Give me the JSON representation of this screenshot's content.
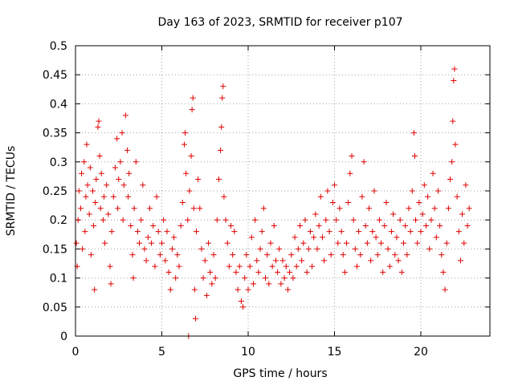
{
  "chart_data": {
    "type": "scatter",
    "title": "Day 163 of 2023, SRMTID for receiver p107",
    "xlabel": "GPS time / hours",
    "ylabel": "SRMTID / TECUs",
    "xlim": [
      0,
      24
    ],
    "ylim": [
      0,
      0.5
    ],
    "xticks": [
      0,
      5,
      10,
      15,
      20
    ],
    "xtick_labels": [
      "0",
      "5",
      "10",
      "15",
      "20"
    ],
    "yticks": [
      0,
      0.05,
      0.1,
      0.15,
      0.2,
      0.25,
      0.3,
      0.35,
      0.4,
      0.45,
      0.5
    ],
    "ytick_labels": [
      "0",
      "0.05",
      "0.1",
      "0.15",
      "0.2",
      "0.25",
      "0.3",
      "0.35",
      "0.4",
      "0.45",
      "0.5"
    ],
    "grid": true,
    "marker": "+",
    "color": "#e00000",
    "series": [
      {
        "name": "SRMTID",
        "points": [
          [
            0.05,
            0.16
          ],
          [
            0.1,
            0.12
          ],
          [
            0.15,
            0.2
          ],
          [
            0.2,
            0.25
          ],
          [
            0.3,
            0.22
          ],
          [
            0.35,
            0.28
          ],
          [
            0.4,
            0.15
          ],
          [
            0.5,
            0.3
          ],
          [
            0.55,
            0.18
          ],
          [
            0.6,
            0.24
          ],
          [
            0.65,
            0.33
          ],
          [
            0.7,
            0.26
          ],
          [
            0.8,
            0.21
          ],
          [
            0.85,
            0.29
          ],
          [
            0.9,
            0.14
          ],
          [
            1.0,
            0.25
          ],
          [
            1.05,
            0.19
          ],
          [
            1.1,
            0.08
          ],
          [
            1.15,
            0.23
          ],
          [
            1.2,
            0.27
          ],
          [
            1.3,
            0.36
          ],
          [
            1.35,
            0.37
          ],
          [
            1.4,
            0.31
          ],
          [
            1.45,
            0.22
          ],
          [
            1.5,
            0.28
          ],
          [
            1.6,
            0.2
          ],
          [
            1.65,
            0.24
          ],
          [
            1.7,
            0.16
          ],
          [
            1.8,
            0.26
          ],
          [
            1.9,
            0.21
          ],
          [
            2.0,
            0.12
          ],
          [
            2.05,
            0.09
          ],
          [
            2.1,
            0.18
          ],
          [
            2.2,
            0.24
          ],
          [
            2.3,
            0.29
          ],
          [
            2.4,
            0.34
          ],
          [
            2.45,
            0.22
          ],
          [
            2.5,
            0.27
          ],
          [
            2.6,
            0.3
          ],
          [
            2.7,
            0.35
          ],
          [
            2.75,
            0.2
          ],
          [
            2.8,
            0.26
          ],
          [
            2.9,
            0.38
          ],
          [
            3.0,
            0.32
          ],
          [
            3.05,
            0.24
          ],
          [
            3.1,
            0.28
          ],
          [
            3.2,
            0.19
          ],
          [
            3.3,
            0.14
          ],
          [
            3.35,
            0.1
          ],
          [
            3.4,
            0.22
          ],
          [
            3.5,
            0.3
          ],
          [
            3.6,
            0.18
          ],
          [
            3.7,
            0.16
          ],
          [
            3.8,
            0.2
          ],
          [
            3.9,
            0.26
          ],
          [
            4.0,
            0.15
          ],
          [
            4.1,
            0.13
          ],
          [
            4.2,
            0.17
          ],
          [
            4.3,
            0.22
          ],
          [
            4.4,
            0.16
          ],
          [
            4.5,
            0.19
          ],
          [
            4.6,
            0.12
          ],
          [
            4.7,
            0.24
          ],
          [
            4.8,
            0.18
          ],
          [
            4.9,
            0.14
          ],
          [
            5.0,
            0.16
          ],
          [
            5.1,
            0.2
          ],
          [
            5.2,
            0.13
          ],
          [
            5.3,
            0.18
          ],
          [
            5.4,
            0.11
          ],
          [
            5.5,
            0.08
          ],
          [
            5.6,
            0.15
          ],
          [
            5.7,
            0.17
          ],
          [
            5.8,
            0.1
          ],
          [
            5.9,
            0.14
          ],
          [
            6.0,
            0.12
          ],
          [
            6.1,
            0.19
          ],
          [
            6.2,
            0.23
          ],
          [
            6.3,
            0.33
          ],
          [
            6.35,
            0.35
          ],
          [
            6.4,
            0.28
          ],
          [
            6.5,
            0.2
          ],
          [
            6.55,
            0.0
          ],
          [
            6.6,
            0.25
          ],
          [
            6.7,
            0.31
          ],
          [
            6.75,
            0.39
          ],
          [
            6.8,
            0.41
          ],
          [
            6.85,
            0.22
          ],
          [
            6.9,
            0.08
          ],
          [
            6.95,
            0.03
          ],
          [
            7.0,
            0.18
          ],
          [
            7.1,
            0.27
          ],
          [
            7.2,
            0.22
          ],
          [
            7.3,
            0.15
          ],
          [
            7.4,
            0.1
          ],
          [
            7.5,
            0.13
          ],
          [
            7.6,
            0.07
          ],
          [
            7.7,
            0.16
          ],
          [
            7.8,
            0.11
          ],
          [
            7.9,
            0.09
          ],
          [
            8.0,
            0.14
          ],
          [
            8.1,
            0.1
          ],
          [
            8.2,
            0.2
          ],
          [
            8.3,
            0.27
          ],
          [
            8.4,
            0.32
          ],
          [
            8.45,
            0.36
          ],
          [
            8.5,
            0.41
          ],
          [
            8.55,
            0.43
          ],
          [
            8.6,
            0.24
          ],
          [
            8.7,
            0.2
          ],
          [
            8.8,
            0.16
          ],
          [
            8.9,
            0.12
          ],
          [
            9.0,
            0.19
          ],
          [
            9.1,
            0.14
          ],
          [
            9.2,
            0.18
          ],
          [
            9.3,
            0.11
          ],
          [
            9.4,
            0.08
          ],
          [
            9.5,
            0.12
          ],
          [
            9.6,
            0.06
          ],
          [
            9.7,
            0.05
          ],
          [
            9.8,
            0.1
          ],
          [
            9.9,
            0.14
          ],
          [
            10.0,
            0.08
          ],
          [
            10.1,
            0.12
          ],
          [
            10.2,
            0.17
          ],
          [
            10.3,
            0.09
          ],
          [
            10.4,
            0.2
          ],
          [
            10.5,
            0.13
          ],
          [
            10.6,
            0.11
          ],
          [
            10.7,
            0.15
          ],
          [
            10.8,
            0.18
          ],
          [
            10.9,
            0.22
          ],
          [
            11.0,
            0.1
          ],
          [
            11.1,
            0.14
          ],
          [
            11.2,
            0.09
          ],
          [
            11.3,
            0.16
          ],
          [
            11.4,
            0.12
          ],
          [
            11.5,
            0.19
          ],
          [
            11.6,
            0.13
          ],
          [
            11.7,
            0.11
          ],
          [
            11.8,
            0.15
          ],
          [
            11.9,
            0.09
          ],
          [
            12.0,
            0.13
          ],
          [
            12.1,
            0.1
          ],
          [
            12.2,
            0.12
          ],
          [
            12.3,
            0.08
          ],
          [
            12.4,
            0.11
          ],
          [
            12.5,
            0.14
          ],
          [
            12.6,
            0.1
          ],
          [
            12.7,
            0.17
          ],
          [
            12.8,
            0.12
          ],
          [
            12.9,
            0.15
          ],
          [
            13.0,
            0.19
          ],
          [
            13.1,
            0.13
          ],
          [
            13.2,
            0.16
          ],
          [
            13.3,
            0.2
          ],
          [
            13.4,
            0.11
          ],
          [
            13.5,
            0.15
          ],
          [
            13.6,
            0.18
          ],
          [
            13.7,
            0.12
          ],
          [
            13.8,
            0.17
          ],
          [
            13.9,
            0.21
          ],
          [
            14.0,
            0.15
          ],
          [
            14.1,
            0.19
          ],
          [
            14.2,
            0.24
          ],
          [
            14.3,
            0.17
          ],
          [
            14.4,
            0.13
          ],
          [
            14.5,
            0.2
          ],
          [
            14.6,
            0.25
          ],
          [
            14.7,
            0.18
          ],
          [
            14.8,
            0.14
          ],
          [
            14.9,
            0.23
          ],
          [
            15.0,
            0.26
          ],
          [
            15.1,
            0.2
          ],
          [
            15.2,
            0.16
          ],
          [
            15.3,
            0.22
          ],
          [
            15.4,
            0.18
          ],
          [
            15.5,
            0.14
          ],
          [
            15.6,
            0.11
          ],
          [
            15.7,
            0.16
          ],
          [
            15.8,
            0.23
          ],
          [
            15.9,
            0.28
          ],
          [
            16.0,
            0.31
          ],
          [
            16.1,
            0.2
          ],
          [
            16.2,
            0.15
          ],
          [
            16.3,
            0.12
          ],
          [
            16.4,
            0.18
          ],
          [
            16.5,
            0.14
          ],
          [
            16.6,
            0.24
          ],
          [
            16.7,
            0.3
          ],
          [
            16.8,
            0.19
          ],
          [
            16.9,
            0.16
          ],
          [
            17.0,
            0.22
          ],
          [
            17.1,
            0.13
          ],
          [
            17.2,
            0.18
          ],
          [
            17.3,
            0.25
          ],
          [
            17.4,
            0.17
          ],
          [
            17.5,
            0.14
          ],
          [
            17.6,
            0.2
          ],
          [
            17.7,
            0.16
          ],
          [
            17.8,
            0.11
          ],
          [
            17.9,
            0.19
          ],
          [
            18.0,
            0.23
          ],
          [
            18.1,
            0.15
          ],
          [
            18.2,
            0.12
          ],
          [
            18.3,
            0.18
          ],
          [
            18.4,
            0.21
          ],
          [
            18.5,
            0.14
          ],
          [
            18.6,
            0.17
          ],
          [
            18.7,
            0.13
          ],
          [
            18.8,
            0.2
          ],
          [
            18.9,
            0.11
          ],
          [
            19.0,
            0.16
          ],
          [
            19.1,
            0.19
          ],
          [
            19.2,
            0.14
          ],
          [
            19.3,
            0.22
          ],
          [
            19.4,
            0.18
          ],
          [
            19.5,
            0.25
          ],
          [
            19.6,
            0.35
          ],
          [
            19.65,
            0.31
          ],
          [
            19.7,
            0.2
          ],
          [
            19.8,
            0.16
          ],
          [
            19.9,
            0.23
          ],
          [
            20.0,
            0.18
          ],
          [
            20.1,
            0.21
          ],
          [
            20.2,
            0.26
          ],
          [
            20.3,
            0.19
          ],
          [
            20.4,
            0.24
          ],
          [
            20.5,
            0.15
          ],
          [
            20.6,
            0.2
          ],
          [
            20.7,
            0.28
          ],
          [
            20.8,
            0.22
          ],
          [
            20.9,
            0.17
          ],
          [
            21.0,
            0.25
          ],
          [
            21.1,
            0.19
          ],
          [
            21.2,
            0.14
          ],
          [
            21.3,
            0.11
          ],
          [
            21.4,
            0.08
          ],
          [
            21.5,
            0.16
          ],
          [
            21.6,
            0.22
          ],
          [
            21.7,
            0.27
          ],
          [
            21.8,
            0.3
          ],
          [
            21.85,
            0.37
          ],
          [
            21.9,
            0.44
          ],
          [
            21.95,
            0.46
          ],
          [
            22.0,
            0.33
          ],
          [
            22.1,
            0.24
          ],
          [
            22.2,
            0.18
          ],
          [
            22.3,
            0.13
          ],
          [
            22.4,
            0.21
          ],
          [
            22.5,
            0.16
          ],
          [
            22.6,
            0.26
          ],
          [
            22.7,
            0.19
          ],
          [
            22.8,
            0.22
          ]
        ]
      }
    ]
  }
}
